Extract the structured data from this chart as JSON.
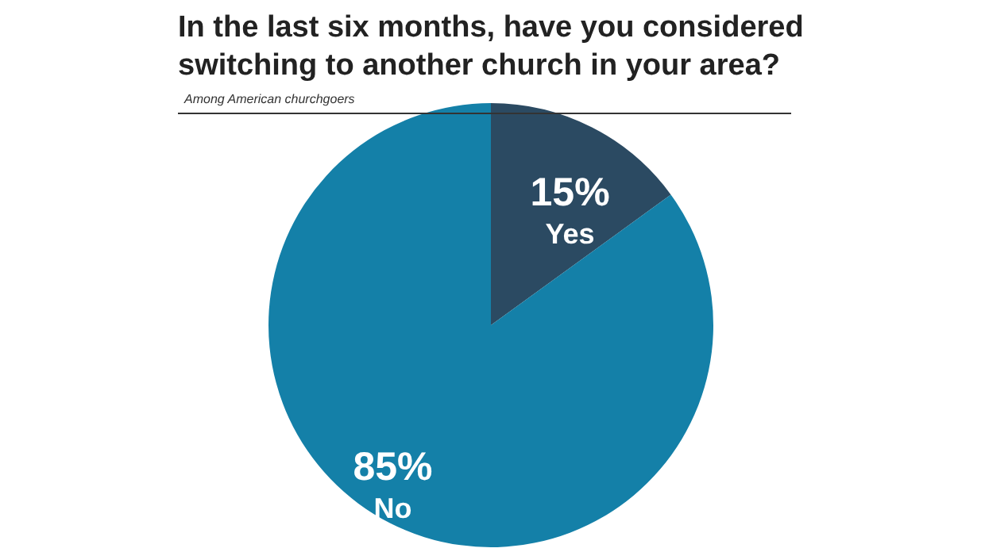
{
  "chart_data": {
    "type": "pie",
    "title": "In the last six months, have you considered switching to another church in your area?",
    "subtitle": "Among American churchgoers",
    "categories": [
      "Yes",
      "No"
    ],
    "values": [
      15,
      85
    ],
    "colors": [
      "#2b4a62",
      "#1480a8"
    ],
    "value_labels": [
      "15%",
      "85%"
    ],
    "legend": false
  }
}
